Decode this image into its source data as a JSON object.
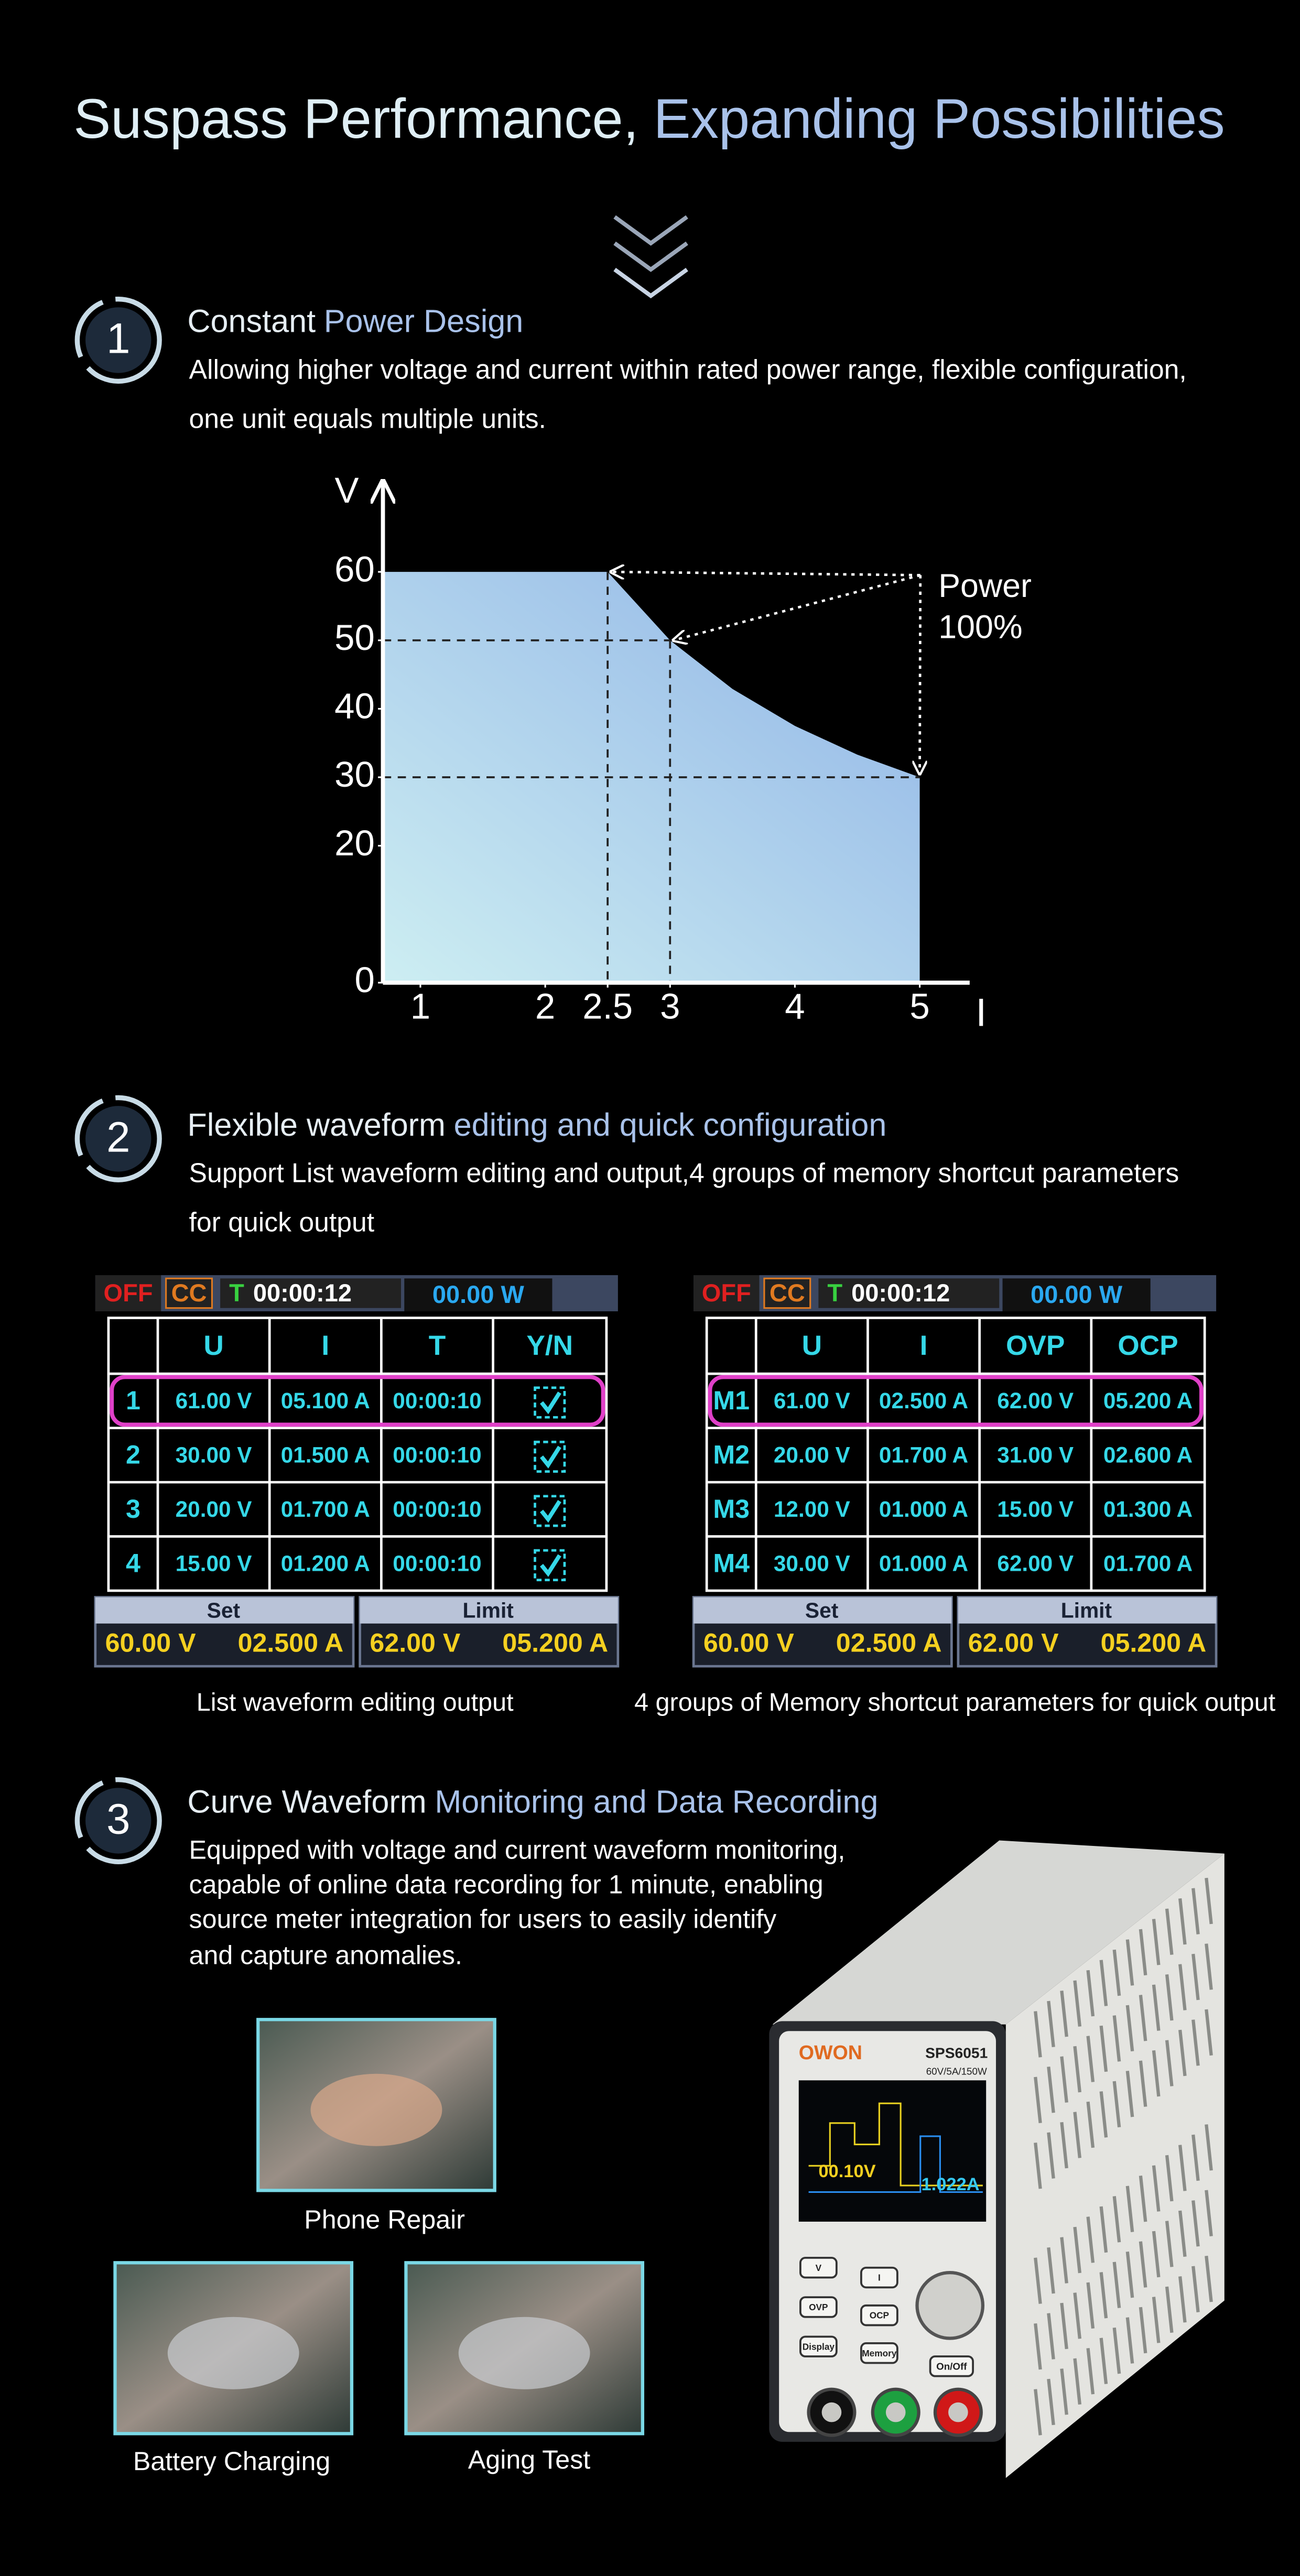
{
  "title": {
    "part1": "Suspass Performance,",
    "part2": "Expanding Possibilities"
  },
  "sections": [
    {
      "number": "1",
      "heading_white": "Constant",
      "heading_blue": "Power Design",
      "description": [
        "Allowing higher voltage and current within rated power range, flexible configuration,",
        "one unit equals multiple units."
      ]
    },
    {
      "number": "2",
      "heading_white": "Flexible waveform",
      "heading_blue": "editing and quick configuration",
      "description": [
        "Support List waveform editing and output,4 groups of memory shortcut parameters",
        "for quick output"
      ]
    },
    {
      "number": "3",
      "heading_white": "Curve Waveform",
      "heading_blue": "Monitoring and Data Recording",
      "description": [
        "Equipped with voltage and current waveform monitoring,",
        "capable of online data recording for 1 minute, enabling",
        "source meter integration for users to easily identify",
        "and capture anomalies."
      ]
    }
  ],
  "chart_data": {
    "type": "area",
    "x_label": "I",
    "y_label": "V",
    "x": [
      0.7,
      2.5,
      3,
      3.5,
      4,
      4.5,
      5
    ],
    "series": [
      {
        "values": [
          60,
          60,
          50,
          42.9,
          37.5,
          33.3,
          30
        ],
        "color": "#8fb3e6"
      }
    ],
    "xlim": [
      0.7,
      5.4
    ],
    "ylim": [
      0,
      72
    ],
    "xticks": [
      1,
      2,
      2.5,
      3,
      4,
      5
    ],
    "yticks": [
      0,
      20,
      30,
      40,
      50,
      60
    ],
    "annotation": [
      "Power",
      "100%"
    ]
  },
  "screens": [
    {
      "status": {
        "off": "OFF",
        "mode": "CC",
        "timer_label": "T",
        "time": "00:00:12",
        "power": "00.00 W"
      },
      "header": [
        "U",
        "I",
        "T",
        "Y/N"
      ],
      "rows": [
        [
          "1",
          "61.00 V",
          "05.100 A",
          "00:00:10"
        ],
        [
          "2",
          "30.00 V",
          "01.500 A",
          "00:00:10"
        ],
        [
          "3",
          "20.00 V",
          "01.700 A",
          "00:00:10"
        ],
        [
          "4",
          "15.00 V",
          "01.200 A",
          "00:00:10"
        ]
      ],
      "set_label": "Set",
      "set_values": [
        "60.00 V",
        "02.500 A"
      ],
      "limit_label": "Limit",
      "limit_values": [
        "62.00 V",
        "05.200 A"
      ],
      "caption": "List waveform editing output"
    },
    {
      "status": {
        "off": "OFF",
        "mode": "CC",
        "timer_label": "T",
        "time": "00:00:12",
        "power": "00.00 W"
      },
      "header": [
        "U",
        "I",
        "OVP",
        "OCP"
      ],
      "rows": [
        [
          "M1",
          "61.00 V",
          "02.500 A",
          "62.00 V",
          "05.200 A"
        ],
        [
          "M2",
          "20.00 V",
          "01.700 A",
          "31.00 V",
          "02.600 A"
        ],
        [
          "M3",
          "12.00 V",
          "01.000 A",
          "15.00 V",
          "01.300 A"
        ],
        [
          "M4",
          "30.00 V",
          "01.000 A",
          "62.00 V",
          "01.700 A"
        ]
      ],
      "set_label": "Set",
      "set_values": [
        "60.00 V",
        "02.500 A"
      ],
      "limit_label": "Limit",
      "limit_values": [
        "62.00 V",
        "05.200 A"
      ],
      "caption": "4 groups of Memory shortcut parameters for quick output"
    }
  ],
  "photos": [
    {
      "caption": "Phone Repair"
    },
    {
      "caption": "Battery Charging"
    },
    {
      "caption": "Aging Test"
    }
  ],
  "device": {
    "brand": "OWON",
    "model": "SPS6051",
    "rating": "60V/5A/150W",
    "screen_voltage": "00.10V",
    "screen_current": "1.022A",
    "buttons": [
      "V",
      "I",
      "OVP",
      "OCP",
      "Display",
      "Memory",
      "On/Off"
    ]
  }
}
